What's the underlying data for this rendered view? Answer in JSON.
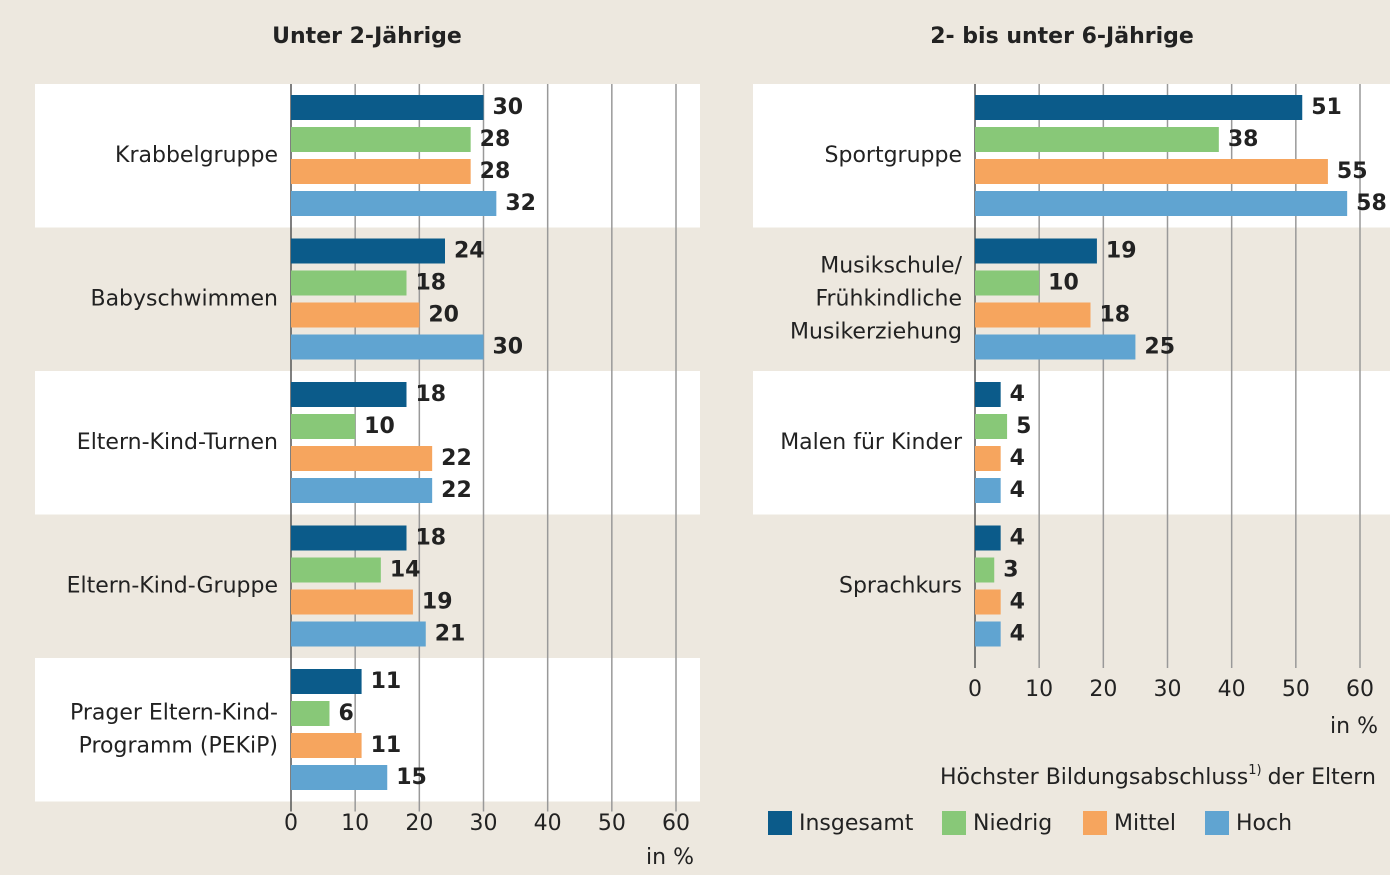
{
  "chart_data": [
    {
      "type": "bar",
      "title": "Unter 2-Jährige",
      "categories": [
        [
          "Krabbelgruppe"
        ],
        [
          "Babyschwimmen"
        ],
        [
          "Eltern-Kind-Turnen"
        ],
        [
          "Eltern-Kind-Gruppe"
        ],
        [
          "Prager Eltern-Kind-",
          "Programm (PEKiP)"
        ]
      ],
      "series": [
        {
          "values": [
            30,
            24,
            18,
            18,
            11
          ]
        },
        {
          "values": [
            28,
            18,
            10,
            14,
            6
          ]
        },
        {
          "values": [
            28,
            20,
            22,
            19,
            11
          ]
        },
        {
          "values": [
            32,
            30,
            22,
            21,
            15
          ]
        }
      ],
      "xlabel": "in %",
      "xlim": [
        0,
        60
      ],
      "xticks": [
        0,
        10,
        20,
        30,
        40,
        50,
        60
      ],
      "grid": true
    },
    {
      "type": "bar",
      "title": "2- bis unter 6-Jährige",
      "categories": [
        [
          "Sportgruppe"
        ],
        [
          "Musikschule/",
          "Frühkindliche",
          "Musikerziehung"
        ],
        [
          "Malen für Kinder"
        ],
        [
          "Sprachkurs"
        ]
      ],
      "series": [
        {
          "name": "Insgesamt",
          "color": "#0b5b8a",
          "values": [
            51,
            19,
            4,
            4
          ]
        },
        {
          "name": "Niedrig",
          "color": "#88c878",
          "values": [
            38,
            10,
            5,
            3
          ]
        },
        {
          "name": "Mittel",
          "color": "#f6a55e",
          "values": [
            55,
            18,
            4,
            4
          ]
        },
        {
          "name": "Hoch",
          "color": "#60a4d1",
          "values": [
            58,
            25,
            4,
            4
          ]
        }
      ],
      "xlabel": "in %",
      "xlim": [
        0,
        60
      ],
      "xticks": [
        0,
        10,
        20,
        30,
        40,
        50,
        60
      ],
      "grid": true,
      "legend_title": [
        "Höchster Bildungsabschluss",
        "1)",
        "der Eltern"
      ]
    }
  ]
}
